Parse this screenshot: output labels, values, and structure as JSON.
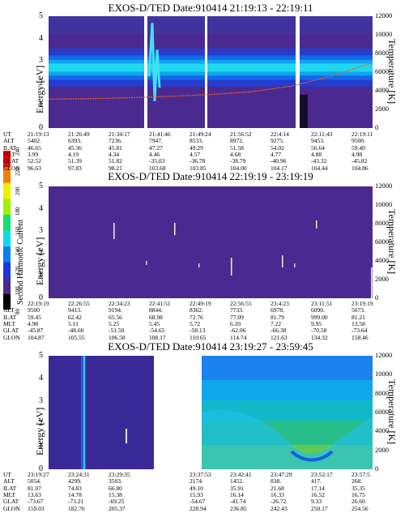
{
  "panels": [
    {
      "title": "EXOS-D/TED   Date:910414   21:19:13 - 22:19:11",
      "y_label": "Energy [eV]",
      "y2_label": "Temperature [K]",
      "eph_times": [
        "21:19:13",
        "21:26:49",
        "21:34:17",
        "21:41:46",
        "21:49:24",
        "21:56:52",
        "22:4:14",
        "22:11:43",
        "22:19:11"
      ],
      "eph": {
        "ALT": [
          "5402.",
          "6393.",
          "7236.",
          "7947.",
          "8533.",
          "8972.",
          "9275.",
          "9453.",
          "9500."
        ],
        "ILAT": [
          "46.65",
          "45.36",
          "45.81",
          "47.27",
          "49.29",
          "51.58",
          "54.02",
          "56.64",
          "59.40"
        ],
        "MLT": [
          "3.99",
          "4.19",
          "4.34",
          "4.46",
          "4.57",
          "4.68",
          "4.77",
          "4.88",
          "4.98"
        ],
        "GLAT": [
          "52.52",
          "51.39",
          "51.82",
          "-35.03",
          "-36.78",
          "-38.79",
          "-40.96",
          "-43.32",
          "-45.82"
        ],
        "GLON": [
          "96.63",
          "97.83",
          "98.21",
          "103.68",
          "103.85",
          "104.00",
          "104.17",
          "104.44",
          "104.86"
        ]
      }
    },
    {
      "title": "EXOS-D/TED   Date:910414   22:19:19 - 23:19:19",
      "y_label": "Energy [eV]",
      "y2_label": "Temperature [K]",
      "extra_label": "Second Harmonic Current",
      "eph_times": [
        "22:19:19",
        "22:26:55",
        "22:34:23",
        "22:41:51",
        "22:49:19",
        "22:56:55",
        "23:4:23",
        "23:11:51",
        "23:19:19"
      ],
      "eph": {
        "ALT": [
          "9500",
          "9413.",
          "9194.",
          "8844.",
          "8362.",
          "7733.",
          "6978.",
          "6090.",
          "5073."
        ],
        "ILAT": [
          "59.45",
          "62.42",
          "65.56",
          "68.98",
          "72.76",
          "77.09",
          "81.79",
          "999.00",
          "81.21"
        ],
        "MLT": [
          "4.98",
          "5.11",
          "5.25",
          "5.45",
          "5.72",
          "6.20",
          "7.22",
          "9.95",
          "13.58"
        ],
        "GLAT": [
          "-45.87",
          "-48.60",
          "-51.50",
          "-54.65",
          "-58.13",
          "-62.06",
          "-66.38",
          "-70.58",
          "-73.64"
        ],
        "GLON": [
          "104.87",
          "105.55",
          "106.58",
          "108.17",
          "110.65",
          "114.74",
          "121.63",
          "134.32",
          "158.46"
        ]
      }
    },
    {
      "title": "EXOS-D/TED   Date:910414   23:19:27 - 23:59:45",
      "y_label": "Energy [eV]",
      "y2_label": "Temperature [K]",
      "eph_times": [
        "23:19:27",
        "23:24:31",
        "23:29:35",
        "",
        "23:37:53",
        "23:42:41",
        "23:47:29",
        "23:52:17",
        "23:57:5"
      ],
      "eph": {
        "ALT": [
          "5054.",
          "4299.",
          "3503.",
          "",
          "2174.",
          "1452.",
          "838.",
          "417.",
          "268."
        ],
        "ILAT": [
          "81.07",
          "74.83",
          "66.80",
          "",
          "49.10",
          "35.91",
          "21.68",
          "17.14",
          "35.35"
        ],
        "MLT": [
          "13.63",
          "14.78",
          "15.38",
          "",
          "15.93",
          "16.14",
          "16.33",
          "16.52",
          "16.75"
        ],
        "GLAT": [
          "-73.67",
          "-73.21",
          "-69.25",
          "",
          "-54.67",
          "-41.74",
          "-26.72",
          "9.33",
          "26.60"
        ],
        "GLON": [
          "159.03",
          "182.76",
          "205.37",
          "",
          "228.94",
          "236.85",
          "242.43",
          "250.17",
          "254.56"
        ]
      }
    }
  ],
  "eph_labels": [
    "UT",
    "ALT",
    "ILAT",
    "MLT",
    "GLAT",
    "GLON"
  ],
  "colorbar": {
    "label": "Second Harmonic Current",
    "ticks": [
      "80",
      "100",
      "120",
      "140",
      "160",
      "180",
      "200",
      "220",
      "240"
    ],
    "colors": [
      "#000000",
      "#4a2a90",
      "#1a3ad8",
      "#0a7ff0",
      "#10d8f0",
      "#10e070",
      "#a0f000",
      "#f0f000",
      "#f08000",
      "#f00000"
    ]
  },
  "chart_data": [
    {
      "type": "heatmap",
      "title": "EXOS-D/TED   Date:910414   21:19:13 - 22:19:11",
      "ylabel": "Energy [eV]",
      "y2label": "Temperature [K]",
      "ylim": [
        0,
        5
      ],
      "y2lim": [
        0,
        12000
      ],
      "yticks": [
        0,
        1,
        2,
        3,
        4,
        5
      ],
      "y2ticks": [
        0,
        2000,
        4000,
        6000,
        8000,
        10000,
        12000
      ],
      "x": [
        "21:19:13",
        "21:26:49",
        "21:34:17",
        "21:41:46",
        "21:49:24",
        "21:56:52",
        "22:4:14",
        "22:11:43",
        "22:19:11"
      ],
      "band_center_eV": 2.7,
      "temperature_line": {
        "name": "temperature",
        "x": [
          0,
          0.125,
          0.25,
          0.375,
          0.5,
          0.625,
          0.75,
          0.875,
          1.0
        ],
        "values": [
          3100,
          3150,
          3250,
          3400,
          3600,
          3900,
          4500,
          5600,
          7000
        ]
      }
    },
    {
      "type": "heatmap",
      "title": "EXOS-D/TED   Date:910414   22:19:19 - 23:19:19",
      "ylabel": "Energy [eV]",
      "y2label": "Temperature [K]",
      "ylim": [
        0,
        5
      ],
      "y2lim": [
        0,
        12000
      ],
      "yticks": [
        0,
        1,
        2,
        3,
        4,
        5
      ],
      "y2ticks": [
        0,
        2000,
        4000,
        6000,
        8000,
        10000,
        12000
      ],
      "x": [
        "22:19:19",
        "22:26:55",
        "22:34:23",
        "22:41:51",
        "22:49:19",
        "22:56:55",
        "23:4:23",
        "23:11:51",
        "23:19:19"
      ]
    },
    {
      "type": "heatmap",
      "title": "EXOS-D/TED   Date:910414   23:19:27 - 23:59:45",
      "ylabel": "Energy [eV]",
      "y2label": "Temperature [K]",
      "ylim": [
        0,
        5
      ],
      "y2lim": [
        0,
        12000
      ],
      "yticks": [
        0,
        1,
        2,
        3,
        4,
        5
      ],
      "y2ticks": [
        0,
        2000,
        4000,
        6000,
        8000,
        10000,
        12000
      ],
      "x": [
        "23:19:27",
        "23:24:31",
        "23:29:35",
        "23:37:53",
        "23:42:41",
        "23:47:29",
        "23:52:17",
        "23:57:5"
      ]
    }
  ]
}
